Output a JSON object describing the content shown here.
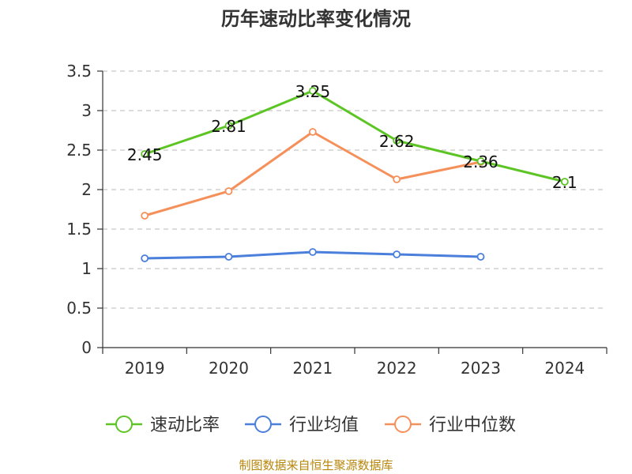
{
  "chart_data": {
    "type": "line",
    "title": "历年速动比率变化情况",
    "categories": [
      "2019",
      "2020",
      "2021",
      "2022",
      "2023",
      "2024"
    ],
    "ylim": [
      0,
      3.5
    ],
    "yticks": [
      "0",
      "0.5",
      "1",
      "1.5",
      "2",
      "2.5",
      "3",
      "3.5"
    ],
    "grid": "horizontal-dashed",
    "legend_position": "bottom",
    "series": [
      {
        "name": "速动比率",
        "color": "#5cc524",
        "values": [
          2.45,
          2.81,
          3.25,
          2.62,
          2.36,
          2.1
        ],
        "labels": [
          "2.45",
          "2.81",
          "3.25",
          "2.62",
          "2.36",
          "2.1"
        ]
      },
      {
        "name": "行业均值",
        "color": "#4a7fdb",
        "values": [
          1.13,
          1.15,
          1.21,
          1.18,
          1.15,
          null
        ]
      },
      {
        "name": "行业中位数",
        "color": "#f5905a",
        "values": [
          1.67,
          1.98,
          2.73,
          2.13,
          2.35,
          null
        ]
      }
    ]
  },
  "source": "制图数据来自恒生聚源数据库"
}
